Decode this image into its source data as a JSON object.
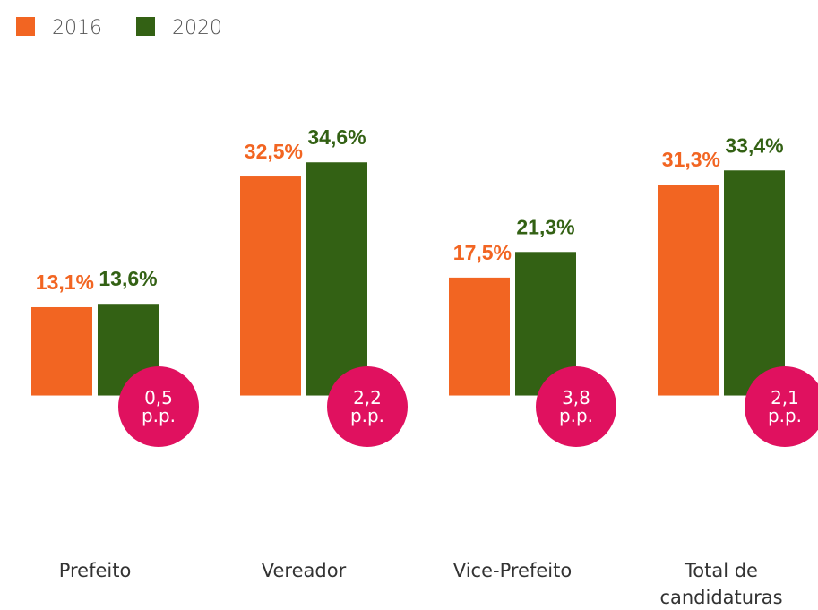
{
  "chart_data": {
    "type": "bar",
    "categories": [
      "Prefeito",
      "Vereador",
      "Vice-Prefeito",
      "Total de\ncandidaturas"
    ],
    "series": [
      {
        "name": "2016",
        "color": "#f26522",
        "values": [
          13.1,
          32.5,
          17.5,
          31.3
        ],
        "value_labels": [
          "13,1%",
          "32,5%",
          "17,5%",
          "31,3%"
        ]
      },
      {
        "name": "2020",
        "color": "#336114",
        "values": [
          13.6,
          34.6,
          21.3,
          33.4
        ],
        "value_labels": [
          "13,6%",
          "34,6%",
          "21,3%",
          "33,4%"
        ]
      }
    ],
    "annotations": [
      "0,5\np.p.",
      "2,2\np.p.",
      "3,8\np.p.",
      "2,1\np.p."
    ],
    "annotation_color": "#e0115f",
    "ylim": [
      -20,
      45
    ]
  }
}
